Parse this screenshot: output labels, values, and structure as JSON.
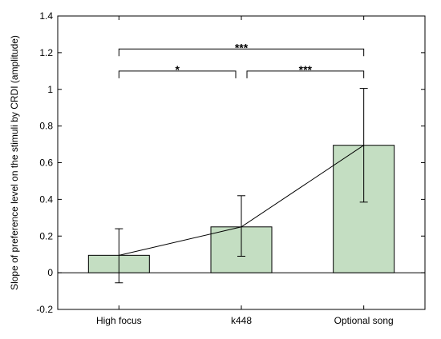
{
  "chart_data": {
    "type": "bar",
    "title": "",
    "xlabel": "",
    "ylabel": "Slope of preference level on the stimuli by CRDI (amplitude)",
    "categories": [
      "High focus",
      "k448",
      "Optional song"
    ],
    "values": [
      0.095,
      0.25,
      0.695
    ],
    "error_low": [
      -0.055,
      0.09,
      0.385
    ],
    "error_high": [
      0.24,
      0.42,
      1.005
    ],
    "ylim": [
      -0.2,
      1.4
    ],
    "yticks": [
      -0.2,
      0,
      0.2,
      0.4,
      0.6,
      0.8,
      1,
      1.2,
      1.4
    ],
    "ytick_labels": [
      "-0.2",
      "0",
      "0.2",
      "0.4",
      "0.6",
      "0.8",
      "1",
      "1.2",
      "1.4"
    ],
    "connecting_line": true,
    "bar_color": "#c4dec2",
    "grid": false,
    "significance": [
      {
        "from": 0,
        "to": 1,
        "label": "*",
        "level": 1.1
      },
      {
        "from": 1,
        "to": 2,
        "label": "***",
        "level": 1.1
      },
      {
        "from": 0,
        "to": 2,
        "label": "***",
        "level": 1.22
      }
    ]
  }
}
